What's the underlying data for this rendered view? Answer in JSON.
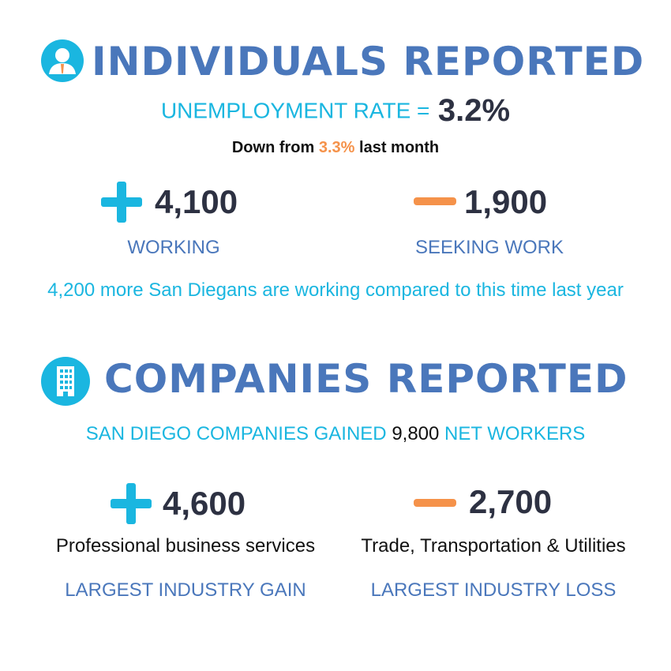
{
  "individuals": {
    "heading": "INDIVIDUALS REPORTED",
    "icon": "person-icon",
    "rate_label": "UNEMPLOYMENT RATE =",
    "rate_value": "3.2%",
    "down_prefix": "Down from",
    "down_value": "3.3%",
    "down_suffix": "last month",
    "working": {
      "value": "4,100",
      "label": "WORKING",
      "sign": "plus"
    },
    "seeking": {
      "value": "1,900",
      "label": "SEEKING WORK",
      "sign": "minus"
    },
    "footnote": "4,200 more San Diegans are working compared to this time last year"
  },
  "companies": {
    "heading": "COMPANIES REPORTED",
    "icon": "building-icon",
    "gain_prefix": "SAN DIEGO COMPANIES GAINED",
    "gain_value": "9,800",
    "gain_suffix": "NET WORKERS",
    "gain": {
      "value": "4,600",
      "industry": "Professional business services",
      "label": "LARGEST INDUSTRY GAIN",
      "sign": "plus"
    },
    "loss": {
      "value": "2,700",
      "industry": "Trade, Transportation & Utilities",
      "label": "LARGEST INDUSTRY LOSS",
      "sign": "minus"
    }
  },
  "colors": {
    "heading_blue": "#4a77bb",
    "cyan": "#1ab6e0",
    "orange": "#f5924a",
    "dark": "#2d3142"
  }
}
